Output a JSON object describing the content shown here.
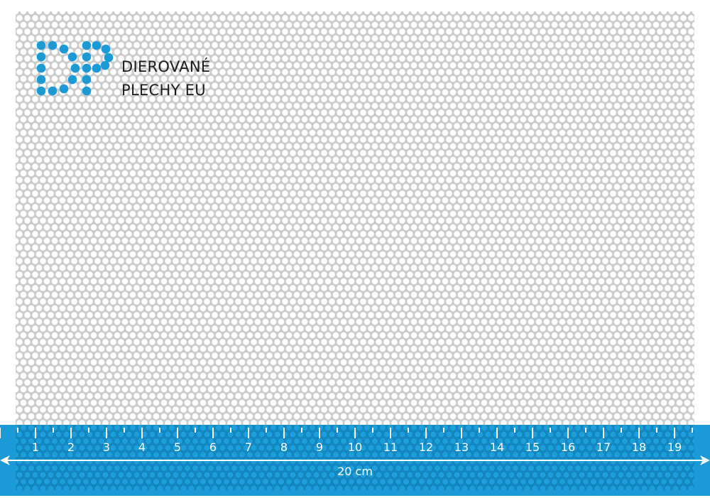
{
  "brand": {
    "line1": "DIEROVANÉ",
    "line2": "PLECHY EU",
    "logo_text": "DP",
    "color": "#1a9ad6"
  },
  "ruler": {
    "labels": [
      "1",
      "2",
      "3",
      "4",
      "5",
      "6",
      "7",
      "8",
      "9",
      "10",
      "11",
      "12",
      "13",
      "14",
      "15",
      "16",
      "17",
      "18",
      "19"
    ],
    "length_label": "20 cm",
    "color": "#1a9ad6"
  }
}
